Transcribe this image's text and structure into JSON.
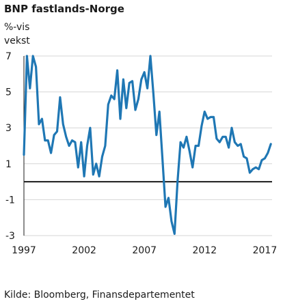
{
  "chart_data": {
    "type": "line",
    "title": "BNP fastlands-Norge",
    "ylabel_line1": "%-vis",
    "ylabel_line2": "vekst",
    "source": "Kilde: Bloomberg, Finansdepartementet",
    "ylim": [
      -3,
      7
    ],
    "yticks": [
      7,
      5,
      3,
      1,
      -1,
      -3
    ],
    "xlim": [
      1997,
      2017.6
    ],
    "xticks": [
      1997,
      2002,
      2007,
      2012,
      2017
    ],
    "grid": "horizontal",
    "zero_line": true,
    "series": [
      {
        "color": "#1f77b4",
        "x": [
          1997.0,
          1997.25,
          1997.5,
          1997.75,
          1998.0,
          1998.25,
          1998.5,
          1998.75,
          1999.0,
          1999.25,
          1999.5,
          1999.75,
          2000.0,
          2000.25,
          2000.5,
          2000.75,
          2001.0,
          2001.25,
          2001.5,
          2001.75,
          2002.0,
          2002.25,
          2002.5,
          2002.75,
          2003.0,
          2003.25,
          2003.5,
          2003.75,
          2004.0,
          2004.25,
          2004.5,
          2004.75,
          2005.0,
          2005.25,
          2005.5,
          2005.75,
          2006.0,
          2006.25,
          2006.5,
          2006.75,
          2007.0,
          2007.25,
          2007.5,
          2007.75,
          2008.0,
          2008.25,
          2008.5,
          2008.75,
          2009.0,
          2009.25,
          2009.5,
          2009.75,
          2010.0,
          2010.25,
          2010.5,
          2010.75,
          2011.0,
          2011.25,
          2011.5,
          2011.75,
          2012.0,
          2012.25,
          2012.5,
          2012.75,
          2013.0,
          2013.25,
          2013.5,
          2013.75,
          2014.0,
          2014.25,
          2014.5,
          2014.75,
          2015.0,
          2015.25,
          2015.5,
          2015.75,
          2016.0,
          2016.25,
          2016.5,
          2016.75,
          2017.0,
          2017.25,
          2017.5
        ],
        "y": [
          1.5,
          7.0,
          5.2,
          7.0,
          6.4,
          3.2,
          3.5,
          2.3,
          2.3,
          1.6,
          2.6,
          2.8,
          4.7,
          3.2,
          2.5,
          2.0,
          2.3,
          2.2,
          0.8,
          2.2,
          0.3,
          2.0,
          3.0,
          0.4,
          1.0,
          0.3,
          1.4,
          2.0,
          4.3,
          4.8,
          4.6,
          6.2,
          3.5,
          5.7,
          4.1,
          5.5,
          5.6,
          4.0,
          4.6,
          5.7,
          6.1,
          5.2,
          7.0,
          4.9,
          2.6,
          3.9,
          1.3,
          -1.4,
          -0.9,
          -2.2,
          -2.9,
          0.0,
          2.2,
          1.9,
          2.5,
          1.7,
          0.8,
          2.0,
          2.0,
          3.1,
          3.9,
          3.5,
          3.6,
          3.6,
          2.4,
          2.2,
          2.5,
          2.5,
          1.9,
          3.0,
          2.2,
          2.0,
          2.1,
          1.4,
          1.3,
          0.5,
          0.7,
          0.8,
          0.7,
          1.2,
          1.3,
          1.6,
          2.1
        ]
      }
    ]
  }
}
